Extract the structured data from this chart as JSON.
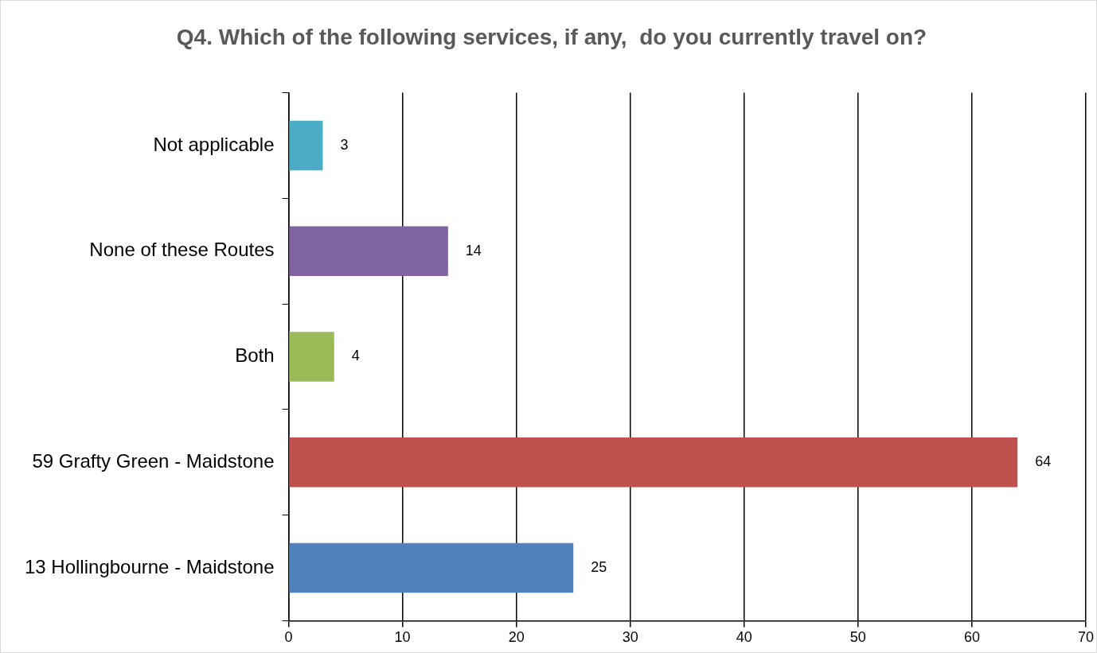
{
  "chart_data": {
    "type": "bar",
    "orientation": "horizontal",
    "title": "Q4. Which of the following services, if any,  do you currently travel on?",
    "categories": [
      "Not applicable",
      "None of these Routes",
      "Both",
      "59 Grafty Green - Maidstone",
      "13 Hollingbourne - Maidstone"
    ],
    "values": [
      3,
      14,
      4,
      64,
      25
    ],
    "colors": [
      "#4bacc6",
      "#8064a2",
      "#9bbb59",
      "#c0504d",
      "#4f81bd"
    ],
    "xlim": [
      0,
      70
    ],
    "xticks": [
      0,
      10,
      20,
      30,
      40,
      50,
      60,
      70
    ],
    "grid": "x",
    "data_labels": true,
    "legend": false
  }
}
